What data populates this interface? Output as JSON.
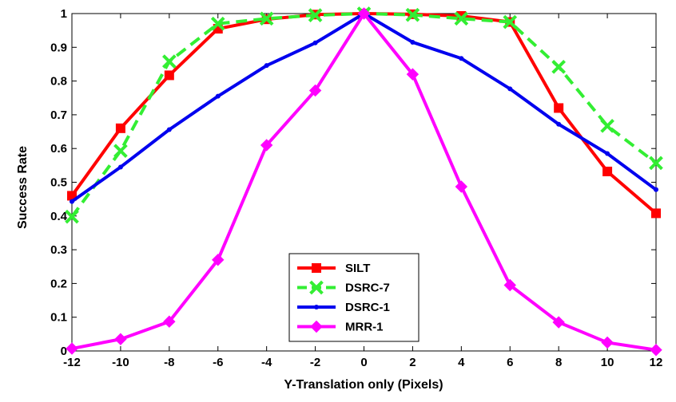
{
  "chart_data": {
    "type": "line",
    "xlabel": "Y-Translation only (Pixels)",
    "ylabel": "Success Rate",
    "x": [
      -12,
      -10,
      -8,
      -6,
      -4,
      -2,
      0,
      2,
      4,
      6,
      8,
      10,
      12
    ],
    "xlim": [
      -12,
      12
    ],
    "ylim": [
      0,
      1
    ],
    "xticks": [
      -12,
      -10,
      -8,
      -6,
      -4,
      -2,
      0,
      2,
      4,
      6,
      8,
      10,
      12
    ],
    "yticks": [
      0,
      0.1,
      0.2,
      0.3,
      0.4,
      0.5,
      0.6,
      0.7,
      0.8,
      0.9,
      1
    ],
    "xtick_labels": [
      "-12",
      "-10",
      "-8",
      "-6",
      "-4",
      "-2",
      "0",
      "2",
      "4",
      "6",
      "8",
      "10",
      "12"
    ],
    "ytick_labels": [
      "0",
      "0.1",
      "0.2",
      "0.3",
      "0.4",
      "0.5",
      "0.6",
      "0.7",
      "0.8",
      "0.9",
      "1"
    ],
    "grid": false,
    "legend_position": "bottom-center",
    "series": [
      {
        "name": "SILT",
        "color": "#ff0000",
        "marker": "square",
        "dash": "solid",
        "values": [
          0.46,
          0.66,
          0.817,
          0.955,
          0.983,
          0.997,
          1.0,
          0.998,
          0.993,
          0.975,
          0.72,
          0.532,
          0.408
        ]
      },
      {
        "name": "DSRC-7",
        "color": "#33ee33",
        "marker": "x",
        "dash": "dashed",
        "values": [
          0.398,
          0.593,
          0.858,
          0.97,
          0.985,
          0.995,
          1.0,
          0.996,
          0.985,
          0.975,
          0.842,
          0.667,
          0.557
        ]
      },
      {
        "name": "DSRC-1",
        "color": "#0000ee",
        "marker": "dot",
        "dash": "solid",
        "values": [
          0.443,
          0.545,
          0.656,
          0.755,
          0.846,
          0.913,
          1.0,
          0.915,
          0.867,
          0.777,
          0.672,
          0.585,
          0.478
        ]
      },
      {
        "name": "MRR-1",
        "color": "#ff00ff",
        "marker": "diamond",
        "dash": "solid",
        "values": [
          0.007,
          0.035,
          0.087,
          0.27,
          0.61,
          0.772,
          1.0,
          0.82,
          0.487,
          0.195,
          0.085,
          0.025,
          0.003
        ]
      }
    ]
  }
}
